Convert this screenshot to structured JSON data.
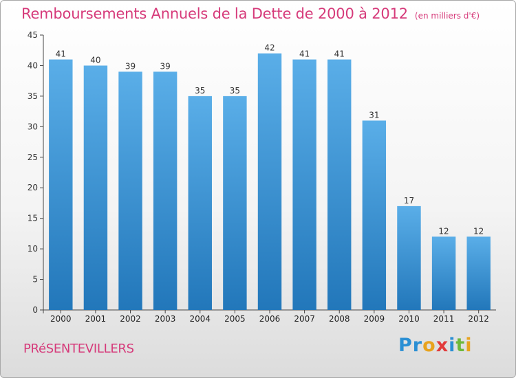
{
  "header": {
    "title": "Remboursements Annuels de la Dette de 2000 à 2012",
    "subtitle": "(en milliers d'€)"
  },
  "footer": {
    "commune": "PRéSENTEVILLERS",
    "logo_text": "Proxiti",
    "logo_letters": [
      {
        "char": "P",
        "color": "#2a8fd4"
      },
      {
        "char": "r",
        "color": "#2a8fd4"
      },
      {
        "char": "o",
        "color": "#e8a21c"
      },
      {
        "char": "x",
        "color": "#e23a3a"
      },
      {
        "char": "i",
        "color": "#2a8fd4"
      },
      {
        "char": "t",
        "color": "#6db83a"
      },
      {
        "char": "i",
        "color": "#e8a21c"
      }
    ]
  },
  "chart_data": {
    "type": "bar",
    "categories": [
      "2000",
      "2001",
      "2002",
      "2003",
      "2004",
      "2005",
      "2006",
      "2007",
      "2008",
      "2009",
      "2010",
      "2011",
      "2012"
    ],
    "values": [
      41,
      40,
      39,
      39,
      35,
      35,
      42,
      41,
      41,
      31,
      17,
      12,
      12
    ],
    "data_labels": [
      "41",
      "40",
      "39",
      "39",
      "35",
      "35",
      "42",
      "41",
      "41",
      "31",
      "17",
      "12",
      "12"
    ],
    "title": "Remboursements Annuels de la Dette de 2000 à 2012",
    "subtitle": "(en milliers d'€)",
    "xlabel": "",
    "ylabel": "",
    "ylim": [
      0,
      45
    ],
    "yticks": [
      "0",
      "5",
      "10",
      "15",
      "20",
      "25",
      "30",
      "35",
      "40",
      "45"
    ],
    "grid": false,
    "legend": "none",
    "colors": {
      "bar_top": "#5aaee8",
      "bar_bottom": "#2277ba",
      "axis": "#444444",
      "title": "#d63a7a"
    }
  }
}
